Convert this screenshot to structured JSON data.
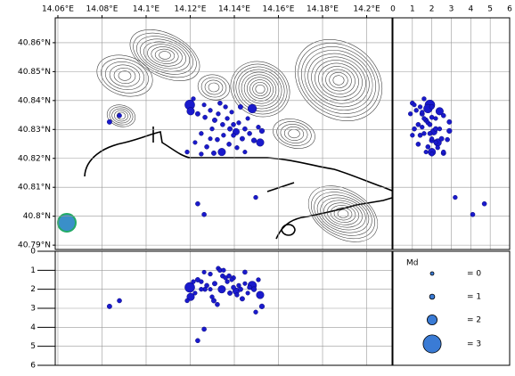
{
  "chart_data": {
    "type": "scatter",
    "color": "#1a1acc",
    "x": [
      14.1198,
      14.1202,
      14.1481,
      14.1343,
      14.1517,
      14.1408,
      14.1234,
      14.1267,
      14.1291,
      14.1311,
      14.1327,
      14.1347,
      14.1368,
      14.138,
      14.1396,
      14.142,
      14.1436,
      14.1448,
      14.1469,
      14.1489,
      14.1388,
      14.1335,
      14.1299,
      14.125,
      14.1222,
      14.1275,
      14.1307,
      14.125,
      14.1376,
      14.1412,
      14.1448,
      14.1428,
      14.136,
      14.1263,
      14.1214,
      14.1323,
      14.1351,
      14.1396,
      14.1461,
      14.1509,
      14.1291,
      14.1186,
      14.0879,
      14.0834,
      14.1234,
      14.1263,
      14.1497,
      14.1525
    ],
    "y": [
      40.8385,
      40.8363,
      40.8372,
      40.8222,
      40.8255,
      40.8292,
      40.8354,
      40.8342,
      40.8366,
      40.8332,
      40.8354,
      40.8317,
      40.8338,
      40.8302,
      40.828,
      40.8323,
      40.8268,
      40.8302,
      40.8286,
      40.8262,
      40.836,
      40.8391,
      40.8302,
      40.8286,
      40.8255,
      40.824,
      40.8218,
      40.8215,
      40.8249,
      40.8237,
      40.8222,
      40.8378,
      40.8378,
      40.8385,
      40.8406,
      40.8265,
      40.828,
      40.8317,
      40.8338,
      40.8308,
      40.8268,
      40.8222,
      40.8348,
      40.8326,
      40.8043,
      40.8006,
      40.8065,
      40.8295
    ],
    "depth": [
      1.9,
      2.4,
      1.8,
      2.0,
      2.3,
      2.1,
      1.5,
      2.0,
      1.2,
      1.7,
      0.9,
      1.3,
      1.6,
      2.2,
      1.4,
      1.8,
      2.5,
      1.1,
      1.9,
      2.0,
      1.5,
      1.0,
      2.4,
      1.6,
      2.2,
      1.8,
      2.6,
      2.0,
      1.3,
      2.3,
      1.7,
      2.0,
      1.4,
      1.1,
      1.6,
      2.8,
      1.0,
      1.9,
      2.2,
      1.5,
      2.0,
      2.6,
      2.6,
      2.9,
      4.7,
      4.1,
      3.2,
      2.9
    ],
    "md": [
      2.0,
      1.6,
      1.8,
      1.6,
      1.6,
      1.4,
      0.9,
      0.8,
      0.7,
      0.9,
      0.7,
      0.8,
      0.7,
      0.9,
      0.8,
      0.7,
      0.9,
      0.8,
      0.8,
      1.0,
      0.6,
      0.8,
      0.7,
      0.7,
      0.6,
      0.8,
      0.9,
      0.7,
      0.8,
      0.7,
      0.6,
      0.9,
      0.7,
      0.6,
      0.7,
      0.8,
      0.7,
      0.8,
      0.6,
      0.7,
      0.6,
      0.7,
      0.8,
      0.9,
      0.8,
      0.8,
      0.7,
      1.0
    ],
    "xlim": [
      14.0588,
      14.2115
    ],
    "ylim": [
      40.7885,
      40.8686
    ],
    "depthlim": [
      0,
      6
    ],
    "xticks": [
      {
        "value": 14.06,
        "label": "14.06°E"
      },
      {
        "value": 14.08,
        "label": "14.08°E"
      },
      {
        "value": 14.1,
        "label": "14.1°E"
      },
      {
        "value": 14.12,
        "label": "14.12°E"
      },
      {
        "value": 14.14,
        "label": "14.14°E"
      },
      {
        "value": 14.16,
        "label": "14.16°E"
      },
      {
        "value": 14.18,
        "label": "14.18°E"
      },
      {
        "value": 14.2,
        "label": "14.2°E"
      }
    ],
    "yticks": [
      {
        "value": 40.79,
        "label": "40.79°N"
      },
      {
        "value": 40.8,
        "label": "40.8°N"
      },
      {
        "value": 40.81,
        "label": "40.81°N"
      },
      {
        "value": 40.82,
        "label": "40.82°N"
      },
      {
        "value": 40.83,
        "label": "40.83°N"
      },
      {
        "value": 40.84,
        "label": "40.84°N"
      },
      {
        "value": 40.85,
        "label": "40.85°N"
      },
      {
        "value": 40.86,
        "label": "40.86°N"
      }
    ],
    "depthticks": [
      0,
      1,
      2,
      3,
      4,
      5,
      6
    ],
    "grid": true,
    "legend": {
      "title": "Md",
      "sizes": [
        0,
        1,
        2,
        3
      ],
      "labels": [
        "= 0",
        "= 1",
        "= 2",
        "= 3"
      ]
    }
  }
}
